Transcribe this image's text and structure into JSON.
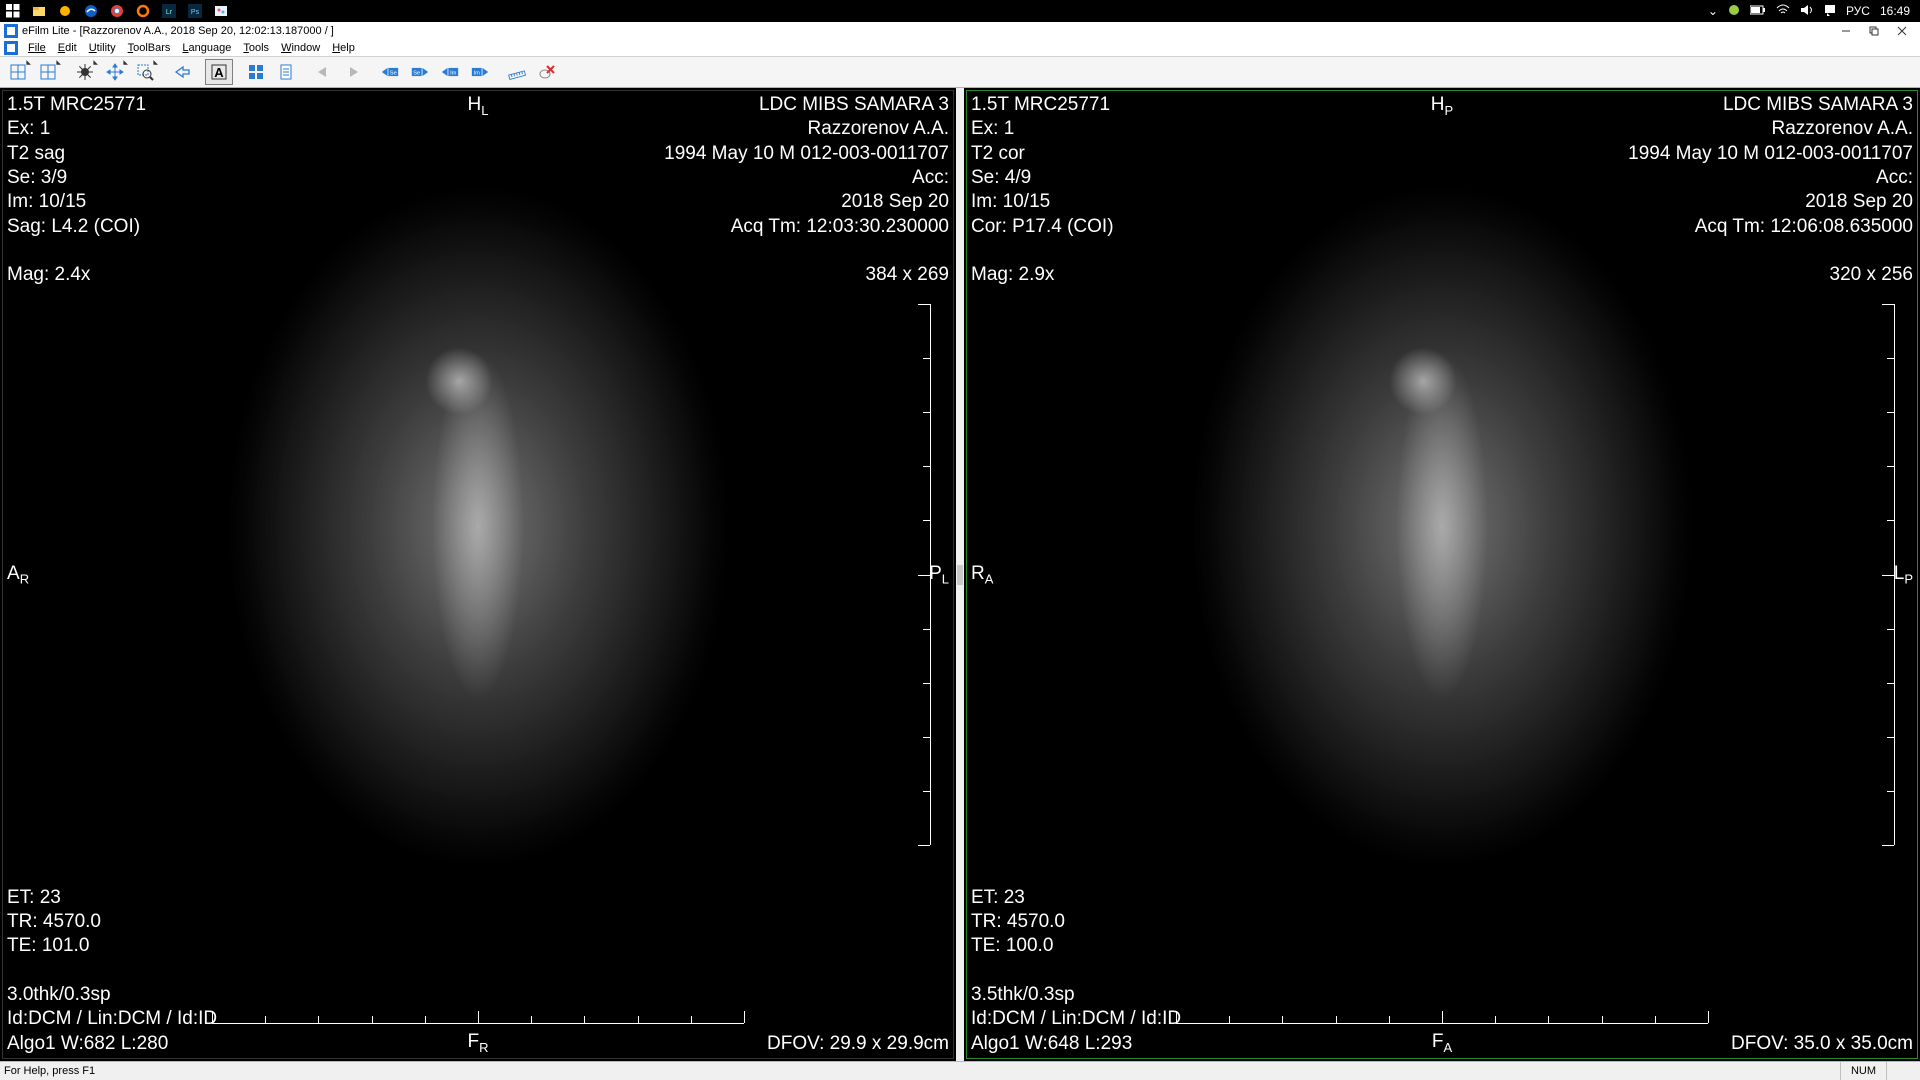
{
  "taskbar": {
    "start": "start",
    "icons": [
      "file-explorer",
      "defender",
      "edge",
      "chrome",
      "o-circle",
      "lightroom",
      "photoshop",
      "paint"
    ],
    "tray": {
      "lang": "РУС",
      "clock": "16:49"
    }
  },
  "titlebar": {
    "text": "eFilm Lite - [Razzorenov A.A., 2018 Sep 20, 12:02:13.187000  /  ]"
  },
  "menubar": {
    "items": [
      "File",
      "Edit",
      "Utility",
      "ToolBars",
      "Language",
      "Tools",
      "Window",
      "Help"
    ]
  },
  "toolbar": {
    "buttons": [
      {
        "n": "layout-1",
        "t": "grid-dot"
      },
      {
        "n": "layout-2",
        "t": "grid-dot"
      },
      {
        "n": "window-level",
        "t": "sun",
        "sel": false
      },
      {
        "n": "pan",
        "t": "pan"
      },
      {
        "n": "zoom",
        "t": "zoom"
      },
      {
        "n": "arrow-back",
        "t": "al"
      },
      {
        "n": "annot-A",
        "t": "A",
        "sel": true
      },
      {
        "n": "grid-4",
        "t": "grid4"
      },
      {
        "n": "report",
        "t": "doc"
      },
      {
        "n": "se-prev-d",
        "t": "tri-l",
        "dis": true
      },
      {
        "n": "se-next-d",
        "t": "tri-r",
        "dis": true
      },
      {
        "n": "se-prev",
        "t": "Se-l"
      },
      {
        "n": "se-next",
        "t": "Se-r"
      },
      {
        "n": "im-prev",
        "t": "Im-l"
      },
      {
        "n": "im-next",
        "t": "Im-r"
      },
      {
        "n": "measure",
        "t": "ruler"
      },
      {
        "n": "delete",
        "t": "dx"
      }
    ]
  },
  "panes": [
    {
      "active": false,
      "tl": [
        "1.5T MRC25771",
        "Ex: 1",
        "T2 sag",
        "Se: 3/9",
        "Im: 10/15",
        "Sag: L4.2 (COI)",
        "",
        "Mag: 2.4x"
      ],
      "tc": "H",
      "tc_sub": "L",
      "tr": [
        "LDC MIBS SAMARA 3",
        "Razzorenov A.A.",
        "1994 May 10  M  012-003-0011707",
        "Acc:",
        "2018 Sep 20",
        "Acq Tm: 12:03:30.230000",
        "",
        "384 x 269"
      ],
      "ml": "A",
      "ml_sub": "R",
      "mr": "P",
      "mr_sub": "L",
      "bl": [
        "ET: 23",
        "TR: 4570.0",
        "TE: 101.0",
        "",
        "3.0thk/0.3sp",
        "Id:DCM / Lin:DCM / Id:ID",
        "Algo1 W:682  L:280"
      ],
      "bc": "F",
      "bc_sub": "R",
      "br": [
        "DFOV: 29.9 x 29.9cm"
      ]
    },
    {
      "active": true,
      "tl": [
        "1.5T MRC25771",
        "Ex: 1",
        "T2 cor",
        "Se: 4/9",
        "Im: 10/15",
        "Cor: P17.4 (COI)",
        "",
        "Mag: 2.9x"
      ],
      "tc": "H",
      "tc_sub": "P",
      "tr": [
        "LDC MIBS SAMARA 3",
        "Razzorenov A.A.",
        "1994 May 10  M  012-003-0011707",
        "Acc:",
        "2018 Sep 20",
        "Acq Tm: 12:06:08.635000",
        "",
        "320 x 256"
      ],
      "ml": "R",
      "ml_sub": "A",
      "mr": "L",
      "mr_sub": "P",
      "bl": [
        "ET: 23",
        "TR: 4570.0",
        "TE: 100.0",
        "",
        "3.5thk/0.3sp",
        "Id:DCM / Lin:DCM / Id:ID",
        "Algo1 W:648  L:293"
      ],
      "bc": "F",
      "bc_sub": "A",
      "br": [
        "DFOV: 35.0 x 35.0cm"
      ]
    }
  ],
  "statusbar": {
    "help": "For Help, press F1",
    "num": "NUM"
  },
  "colors": {
    "accent": "#1a6fd6",
    "toolbar_arrow": "#2a7bd4",
    "delete_x": "#d83030"
  }
}
